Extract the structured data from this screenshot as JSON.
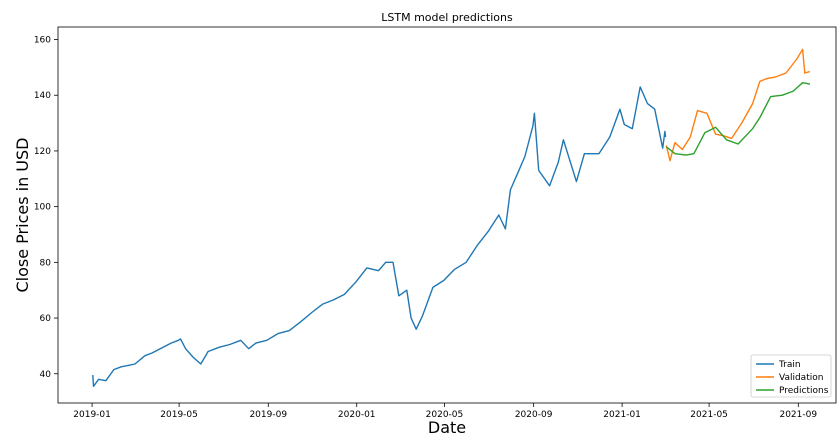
{
  "chart_data": {
    "type": "line",
    "title": "LSTM model predictions",
    "xlabel": "Date",
    "ylabel": "Close Prices in USD",
    "xlim": [
      "2018-11-15",
      "2021-10-23"
    ],
    "ylim": [
      29.5,
      164.5
    ],
    "grid": false,
    "legend_position": "bottom-right",
    "x_ticks": [
      "2019-01-01",
      "2019-05-01",
      "2019-09-01",
      "2020-01-01",
      "2020-05-01",
      "2020-09-01",
      "2021-01-01",
      "2021-05-01",
      "2021-09-01"
    ],
    "x_tick_labels": [
      "2019-01",
      "2019-05",
      "2019-09",
      "2020-01",
      "2020-05",
      "2020-09",
      "2021-01",
      "2021-05",
      "2021-09"
    ],
    "y_ticks": [
      40,
      60,
      80,
      100,
      120,
      140,
      160
    ],
    "y_tick_labels": [
      "40",
      "60",
      "80",
      "100",
      "120",
      "140",
      "160"
    ],
    "series": [
      {
        "name": "Train",
        "color": "#1f77b4",
        "points": [
          [
            "2019-01-02",
            39.5
          ],
          [
            "2019-01-03",
            35.5
          ],
          [
            "2019-01-10",
            38.0
          ],
          [
            "2019-01-20",
            37.5
          ],
          [
            "2019-01-31",
            41.5
          ],
          [
            "2019-02-10",
            42.5
          ],
          [
            "2019-02-20",
            43.0
          ],
          [
            "2019-03-01",
            43.5
          ],
          [
            "2019-03-15",
            46.5
          ],
          [
            "2019-03-25",
            47.5
          ],
          [
            "2019-04-05",
            49.0
          ],
          [
            "2019-04-20",
            51.0
          ],
          [
            "2019-04-30",
            52.0
          ],
          [
            "2019-05-03",
            52.5
          ],
          [
            "2019-05-10",
            49.0
          ],
          [
            "2019-05-20",
            46.0
          ],
          [
            "2019-05-31",
            43.5
          ],
          [
            "2019-06-10",
            48.0
          ],
          [
            "2019-06-25",
            49.5
          ],
          [
            "2019-07-10",
            50.5
          ],
          [
            "2019-07-25",
            52.0
          ],
          [
            "2019-08-05",
            49.0
          ],
          [
            "2019-08-15",
            51.0
          ],
          [
            "2019-08-30",
            52.0
          ],
          [
            "2019-09-15",
            54.5
          ],
          [
            "2019-09-30",
            55.5
          ],
          [
            "2019-10-15",
            58.5
          ],
          [
            "2019-10-31",
            62.0
          ],
          [
            "2019-11-15",
            65.0
          ],
          [
            "2019-11-30",
            66.5
          ],
          [
            "2019-12-15",
            68.5
          ],
          [
            "2019-12-31",
            73.0
          ],
          [
            "2020-01-15",
            78.0
          ],
          [
            "2020-01-31",
            77.0
          ],
          [
            "2020-02-10",
            80.0
          ],
          [
            "2020-02-20",
            80.0
          ],
          [
            "2020-02-28",
            68.0
          ],
          [
            "2020-03-10",
            70.0
          ],
          [
            "2020-03-16",
            60.0
          ],
          [
            "2020-03-23",
            56.0
          ],
          [
            "2020-04-01",
            61.0
          ],
          [
            "2020-04-15",
            71.0
          ],
          [
            "2020-04-30",
            73.5
          ],
          [
            "2020-05-15",
            77.5
          ],
          [
            "2020-05-31",
            80.0
          ],
          [
            "2020-06-15",
            86.0
          ],
          [
            "2020-06-30",
            91.0
          ],
          [
            "2020-07-15",
            97.0
          ],
          [
            "2020-07-24",
            92.0
          ],
          [
            "2020-07-31",
            106.0
          ],
          [
            "2020-08-10",
            112.0
          ],
          [
            "2020-08-20",
            118.0
          ],
          [
            "2020-08-31",
            129.0
          ],
          [
            "2020-09-02",
            133.5
          ],
          [
            "2020-09-08",
            113.0
          ],
          [
            "2020-09-23",
            107.5
          ],
          [
            "2020-10-05",
            116.0
          ],
          [
            "2020-10-12",
            124.0
          ],
          [
            "2020-10-30",
            109.0
          ],
          [
            "2020-11-10",
            119.0
          ],
          [
            "2020-11-30",
            119.0
          ],
          [
            "2020-12-15",
            125.0
          ],
          [
            "2020-12-29",
            135.0
          ],
          [
            "2021-01-04",
            129.5
          ],
          [
            "2021-01-15",
            128.0
          ],
          [
            "2021-01-26",
            143.0
          ],
          [
            "2021-02-05",
            137.0
          ],
          [
            "2021-02-15",
            135.0
          ],
          [
            "2021-02-26",
            121.0
          ],
          [
            "2021-03-01",
            127.0
          ],
          [
            "2021-03-02",
            125.0
          ]
        ]
      },
      {
        "name": "Validation",
        "color": "#ff7f0e",
        "points": [
          [
            "2021-03-03",
            122.0
          ],
          [
            "2021-03-08",
            116.5
          ],
          [
            "2021-03-15",
            123.0
          ],
          [
            "2021-03-25",
            120.5
          ],
          [
            "2021-04-05",
            125.0
          ],
          [
            "2021-04-15",
            134.5
          ],
          [
            "2021-04-28",
            133.5
          ],
          [
            "2021-05-10",
            126.0
          ],
          [
            "2021-05-20",
            125.5
          ],
          [
            "2021-06-01",
            124.5
          ],
          [
            "2021-06-15",
            130.0
          ],
          [
            "2021-06-30",
            137.0
          ],
          [
            "2021-07-10",
            145.0
          ],
          [
            "2021-07-20",
            146.0
          ],
          [
            "2021-07-31",
            146.5
          ],
          [
            "2021-08-15",
            148.0
          ],
          [
            "2021-08-30",
            153.0
          ],
          [
            "2021-09-07",
            156.5
          ],
          [
            "2021-09-10",
            148.0
          ],
          [
            "2021-09-17",
            148.5
          ]
        ]
      },
      {
        "name": "Predictions",
        "color": "#2ca02c",
        "points": [
          [
            "2021-03-03",
            121.5
          ],
          [
            "2021-03-15",
            119.0
          ],
          [
            "2021-03-30",
            118.5
          ],
          [
            "2021-04-10",
            119.0
          ],
          [
            "2021-04-25",
            126.5
          ],
          [
            "2021-05-10",
            128.5
          ],
          [
            "2021-05-25",
            124.0
          ],
          [
            "2021-06-10",
            122.5
          ],
          [
            "2021-06-30",
            128.0
          ],
          [
            "2021-07-10",
            132.0
          ],
          [
            "2021-07-25",
            139.5
          ],
          [
            "2021-08-10",
            140.0
          ],
          [
            "2021-08-25",
            141.5
          ],
          [
            "2021-09-07",
            144.5
          ],
          [
            "2021-09-17",
            144.0
          ]
        ]
      }
    ]
  }
}
